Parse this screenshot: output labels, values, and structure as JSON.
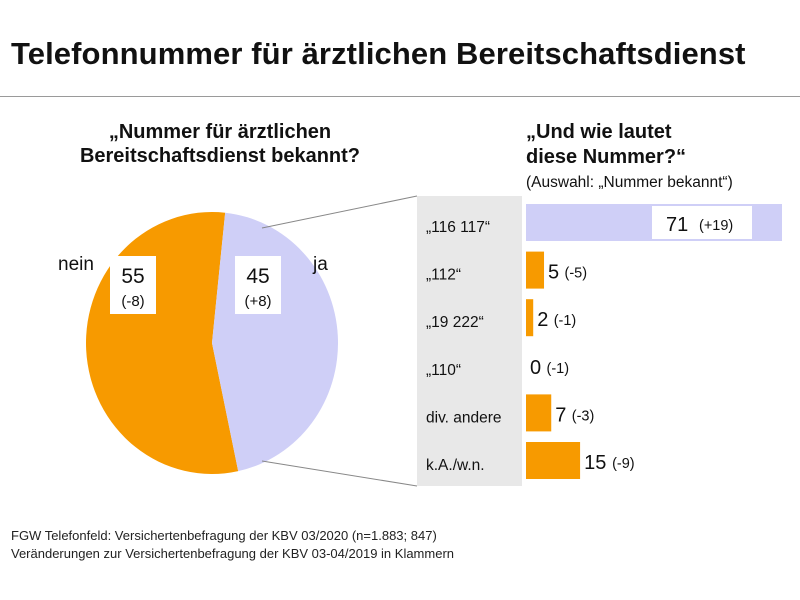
{
  "title": "Telefonnummer für ärztlichen Bereitschaftsdienst",
  "colors": {
    "orange": "#f79a00",
    "lavender": "#cfcff7",
    "grey_band": "#e8e8e8",
    "rule": "#9a9a9a"
  },
  "chart_data": [
    {
      "type": "pie",
      "title_lines": [
        "„Nummer für ärztlichen",
        "Bereitschaftsdienst bekannt?"
      ],
      "slices": [
        {
          "label": "nein",
          "value": 55,
          "change": "(-8)",
          "color": "#f79a00"
        },
        {
          "label": "ja",
          "value": 45,
          "change": "(+8)",
          "color": "#cfcff7"
        }
      ]
    },
    {
      "type": "bar",
      "title_lines": [
        "„Und wie lautet",
        "diese Nummer?“"
      ],
      "subtitle": "(Auswahl: „Nummer bekannt“)",
      "categories": [
        "„116 117“",
        "„112“",
        "„19 222“",
        "„110“",
        "div. andere",
        "k.A./w.n."
      ],
      "values": [
        71,
        5,
        2,
        0,
        7,
        15
      ],
      "changes": [
        "(+19)",
        "(-5)",
        "(-1)",
        "(-1)",
        "(-3)",
        "(-9)"
      ],
      "highlight_index": 0,
      "bar_color": "#f79a00",
      "highlight_color": "#cfcff7",
      "xlim": [
        0,
        100
      ]
    }
  ],
  "footer": [
    "FGW Telefonfeld: Versichertenbefragung der KBV 03/2020 (n=1.883; 847)",
    "Veränderungen zur Versichertenbefragung der KBV 03-04/2019 in Klammern"
  ]
}
